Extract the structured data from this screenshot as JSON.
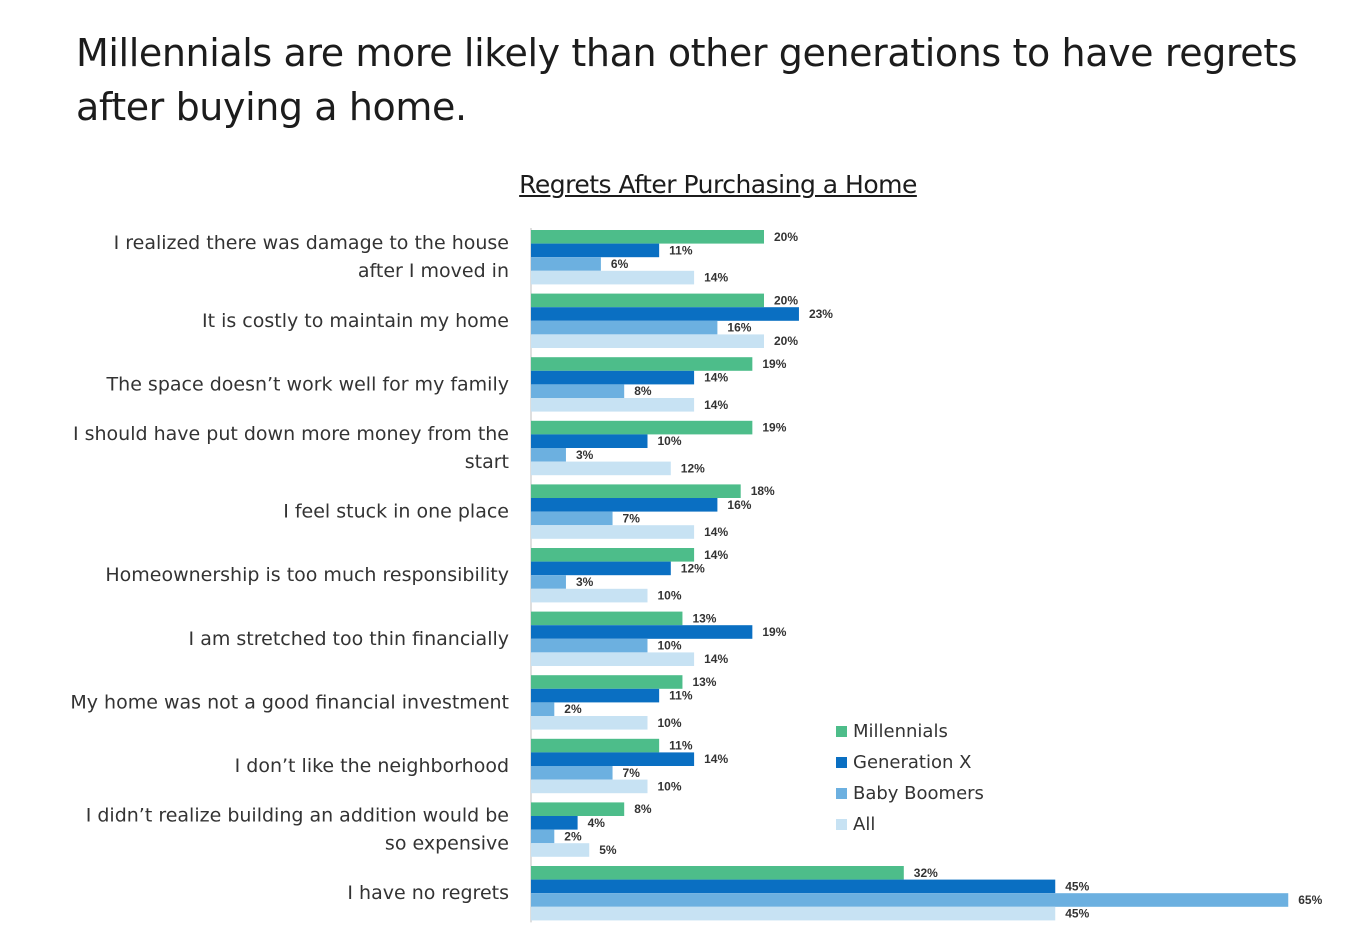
{
  "headline": "Millennials are more likely than other generations to have regrets after buying a home.",
  "chart_data": {
    "type": "bar",
    "orientation": "horizontal",
    "title": "Regrets After Purchasing a Home",
    "categories": [
      [
        "I realized there was damage to the house",
        "after I moved in"
      ],
      [
        "It is costly to maintain my home"
      ],
      [
        "The space doesn’t work well for my family"
      ],
      [
        "I should have put down more money from the",
        "start"
      ],
      [
        "I feel stuck in one place"
      ],
      [
        "Homeownership is too much responsibility"
      ],
      [
        "I am stretched too thin financially"
      ],
      [
        "My home was not a good financial investment"
      ],
      [
        "I don’t like the neighborhood"
      ],
      [
        "I didn’t realize building an addition would be",
        "so expensive"
      ],
      [
        "I have no regrets"
      ]
    ],
    "series": [
      {
        "name": "Millennials",
        "color": "#4dbd8a",
        "values": [
          20,
          20,
          19,
          19,
          18,
          14,
          13,
          13,
          11,
          8,
          32
        ]
      },
      {
        "name": "Generation X",
        "color": "#0a6fc2",
        "values": [
          11,
          23,
          14,
          10,
          16,
          12,
          19,
          11,
          14,
          4,
          45
        ]
      },
      {
        "name": "Baby Boomers",
        "color": "#6cb0e0",
        "values": [
          6,
          16,
          8,
          3,
          7,
          3,
          10,
          2,
          7,
          2,
          65
        ]
      },
      {
        "name": "All",
        "color": "#c7e2f3",
        "values": [
          14,
          20,
          14,
          12,
          14,
          10,
          14,
          10,
          10,
          5,
          45
        ]
      }
    ],
    "value_suffix": "%",
    "legend_position": "bottom-right",
    "grid": false
  }
}
